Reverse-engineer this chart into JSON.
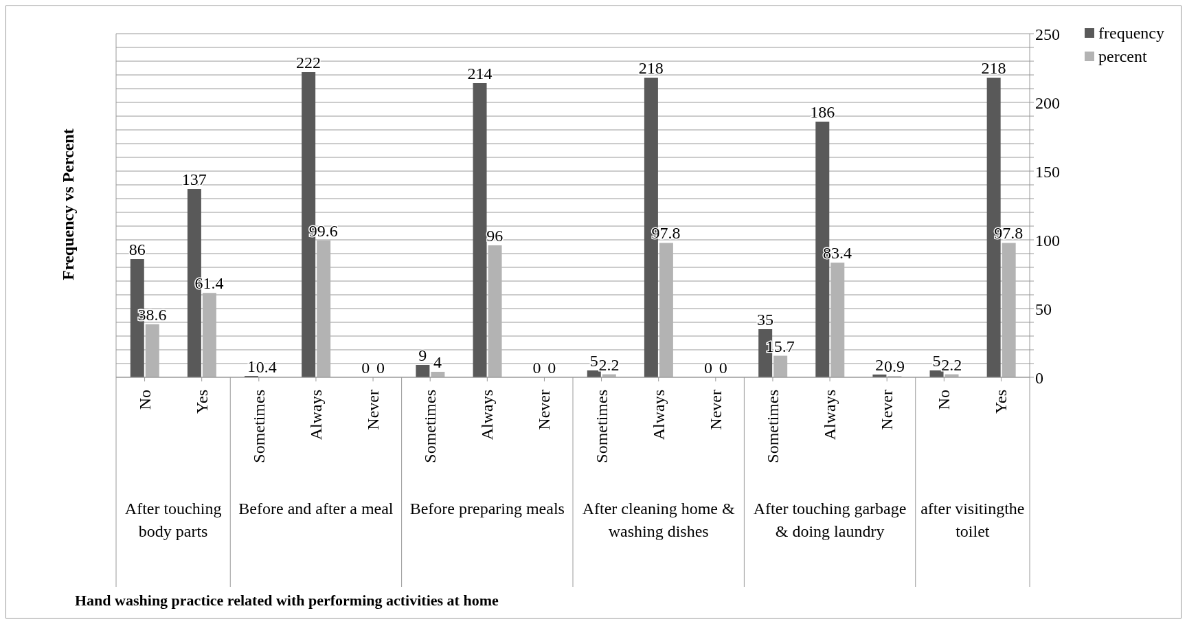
{
  "chart_data": {
    "type": "bar",
    "ylabel": "Frequency vs Percent",
    "categories": [
      "No",
      "Yes",
      "Sometimes",
      "Always",
      "Never",
      "Sometimes",
      "Always",
      "Never",
      "Sometimes",
      "Always",
      "Never",
      "Sometimes",
      "Always",
      "Never",
      "No",
      "Yes"
    ],
    "series": [
      {
        "name": "frequency",
        "color": "#595959",
        "values": [
          86,
          137,
          1,
          222,
          0,
          9,
          214,
          0,
          5,
          218,
          0,
          35,
          186,
          2,
          5,
          218
        ]
      },
      {
        "name": "percent",
        "color": "#b3b3b3",
        "values": [
          38.6,
          61.4,
          0.4,
          99.6,
          0,
          4,
          96,
          0,
          2.2,
          97.8,
          0,
          15.7,
          83.4,
          0.9,
          2.2,
          97.8
        ]
      }
    ],
    "ylim": [
      0,
      250
    ],
    "yticks": [
      0,
      {
        "value": 10,
        "label": null
      },
      {
        "value": 20,
        "label": null
      },
      {
        "value": 30,
        "label": null
      },
      {
        "value": 40,
        "label": null
      },
      50,
      {
        "value": 60,
        "label": null
      },
      {
        "value": 70,
        "label": null
      },
      {
        "value": 80,
        "label": null
      },
      {
        "value": 90,
        "label": null
      },
      100,
      {
        "value": 110,
        "label": null
      },
      {
        "value": 120,
        "label": null
      },
      {
        "value": 130,
        "label": null
      },
      {
        "value": 140,
        "label": null
      },
      150,
      {
        "value": 160,
        "label": null
      },
      {
        "value": 170,
        "label": null
      },
      {
        "value": 180,
        "label": null
      },
      {
        "value": 190,
        "label": null
      },
      200,
      {
        "value": 210,
        "label": null
      },
      {
        "value": 220,
        "label": null
      },
      {
        "value": 230,
        "label": null
      },
      {
        "value": 240,
        "label": null
      },
      250
    ],
    "annotations": [
      "After touching body parts",
      "Before and after a meal",
      "Before preparing meals",
      "After cleaning home & washing dishes",
      "After touching garbage & doing laundry",
      "after visitingthe toilet",
      "Hand washing practice related with performing activities at home"
    ],
    "grid": "y",
    "legend": "top right",
    "data_labels": true
  }
}
